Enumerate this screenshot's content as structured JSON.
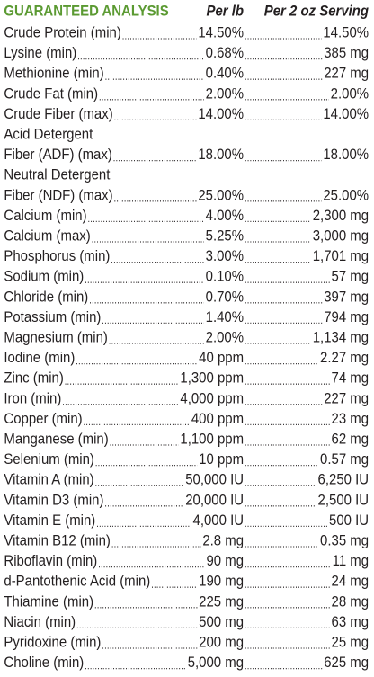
{
  "header": {
    "title": "GUARANTEED ANALYSIS",
    "col1": "Per lb",
    "col2": "Per 2 oz Serving"
  },
  "rows": [
    {
      "name": "Crude Protein (min)",
      "per_lb": "14.50%",
      "per_serving": "14.50%"
    },
    {
      "name": "Lysine (min)",
      "per_lb": "0.68%",
      "per_serving": "385 mg"
    },
    {
      "name": "Methionine (min)",
      "per_lb": "0.40%",
      "per_serving": "227 mg"
    },
    {
      "name": "Crude Fat (min)",
      "per_lb": "2.00%",
      "per_serving": "2.00%"
    },
    {
      "name": "Crude Fiber (max)",
      "per_lb": "14.00%",
      "per_serving": "14.00%"
    },
    {
      "name_line1": "Acid Detergent",
      "name": "Fiber (ADF) (max)",
      "per_lb": "18.00%",
      "per_serving": "18.00%"
    },
    {
      "name_line1": "Neutral Detergent",
      "name": "Fiber (NDF) (max)",
      "per_lb": "25.00%",
      "per_serving": "25.00%"
    },
    {
      "name": "Calcium (min)",
      "per_lb": "4.00%",
      "per_serving": "2,300 mg"
    },
    {
      "name": "Calcium (max)",
      "per_lb": "5.25%",
      "per_serving": "3,000 mg"
    },
    {
      "name": "Phosphorus (min)",
      "per_lb": "3.00%",
      "per_serving": "1,701 mg"
    },
    {
      "name": "Sodium (min)",
      "per_lb": "0.10%",
      "per_serving": "57 mg"
    },
    {
      "name": "Chloride (min)",
      "per_lb": "0.70%",
      "per_serving": "397 mg"
    },
    {
      "name": "Potassium (min)",
      "per_lb": "1.40%",
      "per_serving": "794 mg"
    },
    {
      "name": "Magnesium (min)",
      "per_lb": "2.00%",
      "per_serving": "1,134 mg"
    },
    {
      "name": "Iodine (min)",
      "per_lb": "40 ppm",
      "per_serving": "2.27 mg"
    },
    {
      "name": "Zinc (min)",
      "per_lb": "1,300 ppm",
      "per_serving": "74 mg"
    },
    {
      "name": "Iron (min)",
      "per_lb": "4,000 ppm",
      "per_serving": "227 mg"
    },
    {
      "name": "Copper (min)",
      "per_lb": "400 ppm",
      "per_serving": "23 mg"
    },
    {
      "name": "Manganese (min)",
      "per_lb": "1,100 ppm",
      "per_serving": "62 mg"
    },
    {
      "name": "Selenium (min)",
      "per_lb": "10 ppm",
      "per_serving": "0.57 mg"
    },
    {
      "name": "Vitamin A (min)",
      "per_lb": "50,000 IU",
      "per_serving": "6,250 IU"
    },
    {
      "name": "Vitamin D3 (min)",
      "per_lb": "20,000 IU",
      "per_serving": "2,500 IU"
    },
    {
      "name": "Vitamin E (min)",
      "per_lb": "4,000 IU",
      "per_serving": "500 IU"
    },
    {
      "name": "Vitamin B12 (min)",
      "per_lb": "2.8 mg",
      "per_serving": "0.35 mg"
    },
    {
      "name": "Riboflavin (min)",
      "per_lb": "90 mg",
      "per_serving": "11 mg"
    },
    {
      "name": "d-Pantothenic Acid (min)",
      "per_lb": "190 mg",
      "per_serving": "24 mg"
    },
    {
      "name": "Thiamine (min)",
      "per_lb": "225 mg",
      "per_serving": "28 mg"
    },
    {
      "name": "Niacin (min)",
      "per_lb": "500 mg",
      "per_serving": "63 mg"
    },
    {
      "name": "Pyridoxine (min)",
      "per_lb": "200 mg",
      "per_serving": "25 mg"
    },
    {
      "name": "Choline (min)",
      "per_lb": "5,000 mg",
      "per_serving": "625 mg"
    }
  ]
}
